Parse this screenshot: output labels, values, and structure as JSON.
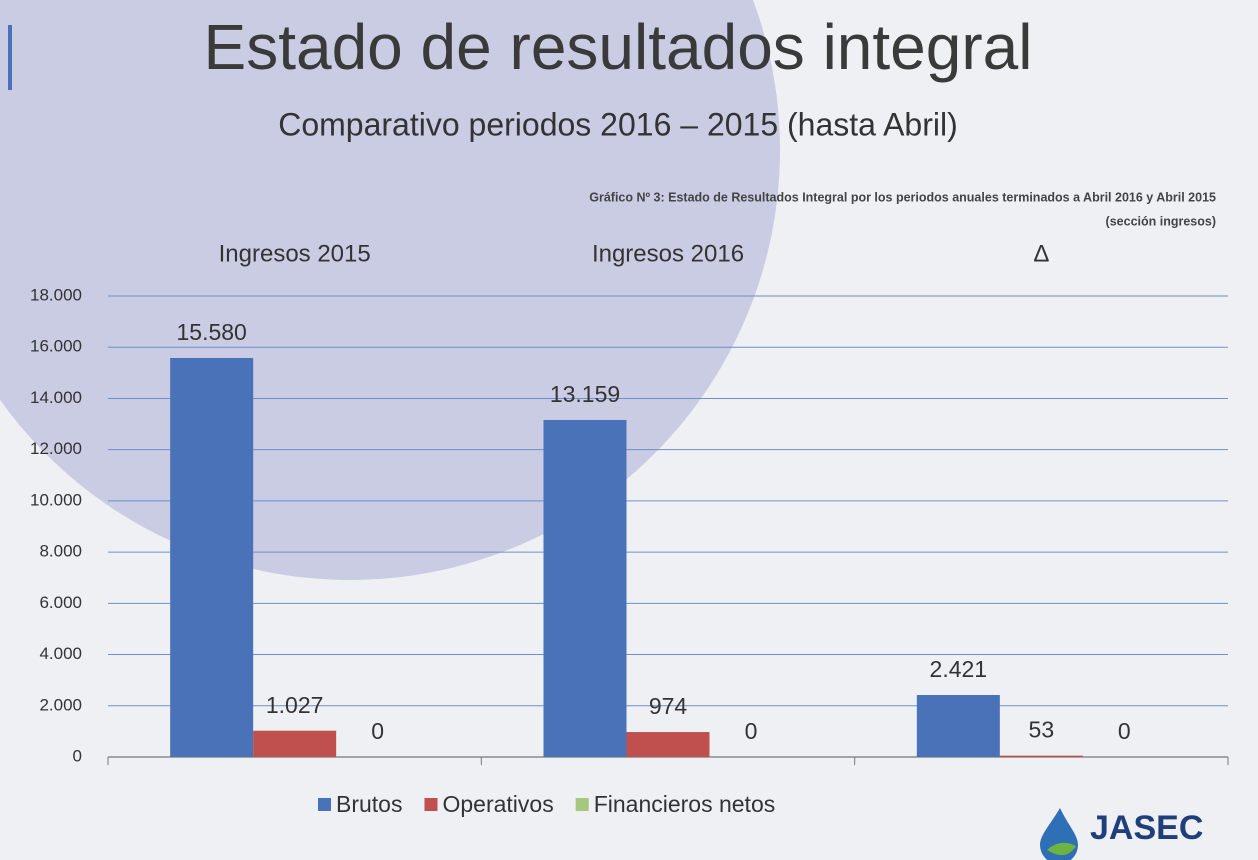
{
  "chart_data": {
    "type": "bar",
    "title": "Estado de resultados integral",
    "subtitle": "Comparativo periodos 2016 – 2015 (hasta Abril)",
    "caption": "Gráfico Nº 3: Estado de Resultados Integral por los periodos anuales terminados a Abril 2016 y Abril 2015",
    "caption_note": "(sección ingresos)",
    "categories": [
      "Ingresos 2015",
      "Ingresos 2016",
      "Δ"
    ],
    "series": [
      {
        "name": "Brutos",
        "color": "#4a72b8",
        "values": [
          15580,
          13159,
          2421
        ],
        "value_labels": [
          "15.580",
          "13.159",
          "2.421"
        ]
      },
      {
        "name": "Operativos",
        "color": "#c0504d",
        "values": [
          1027,
          974,
          53
        ],
        "value_labels": [
          "1.027",
          "974",
          "53"
        ]
      },
      {
        "name": "Financieros netos",
        "color": "#a6c77e",
        "values": [
          0,
          0,
          0
        ],
        "value_labels": [
          "0",
          "0",
          "0"
        ]
      }
    ],
    "ylim": [
      0,
      18000
    ],
    "yticks": [
      0,
      {
        "value": 2000,
        "label": "2.000"
      },
      {
        "value": 4000,
        "label": "4.000"
      },
      {
        "value": 6000,
        "label": "6.000"
      },
      {
        "value": 8000,
        "label": "8.000"
      },
      {
        "value": 10000,
        "label": "10.000"
      },
      {
        "value": 12000,
        "label": "12.000"
      },
      {
        "value": 14000,
        "label": "14.000"
      },
      {
        "value": 16000,
        "label": "16.000"
      },
      {
        "value": 18000,
        "label": "18.000"
      }
    ],
    "grid": true,
    "legend": "bottom"
  },
  "logo": {
    "text": "JASEC"
  }
}
